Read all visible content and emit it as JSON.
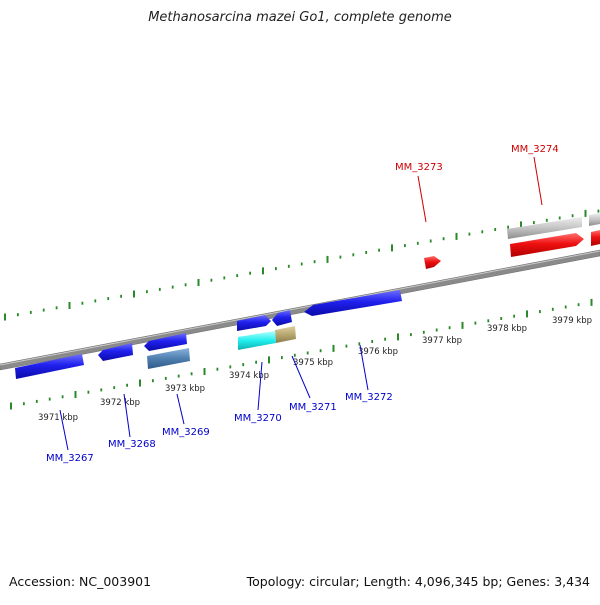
{
  "title": "Methanosarcina mazei Go1, complete genome",
  "footer": {
    "accession": "Accession: NC_003901",
    "summary": "Topology: circular; Length: 4,096,345 bp; Genes: 3,434"
  },
  "colors": {
    "cds": "#1a1aee",
    "highlight": "#ee0000",
    "rna": "#bbbbbb",
    "cyan": "#22eeee",
    "olive": "#b8a870",
    "steel": "#4f7fb0",
    "ticks": "#2a8a2a",
    "axis": "#888888",
    "tick_label": "#222222"
  },
  "scale_labels": [
    "3971 kbp",
    "3972 kbp",
    "3973 kbp",
    "3974 kbp",
    "3975 kbp",
    "3976 kbp",
    "3977 kbp",
    "3978 kbp",
    "3979 kbp"
  ],
  "gene_labels": [
    {
      "text": "MM_3267",
      "color": "#0000cc"
    },
    {
      "text": "MM_3268",
      "color": "#0000cc"
    },
    {
      "text": "MM_3269",
      "color": "#0000cc"
    },
    {
      "text": "MM_3270",
      "color": "#0000cc"
    },
    {
      "text": "MM_3271",
      "color": "#0000cc"
    },
    {
      "text": "MM_3272",
      "color": "#0000cc"
    },
    {
      "text": "MM_3273",
      "color": "#cc0000"
    },
    {
      "text": "MM_3274",
      "color": "#cc0000"
    }
  ]
}
